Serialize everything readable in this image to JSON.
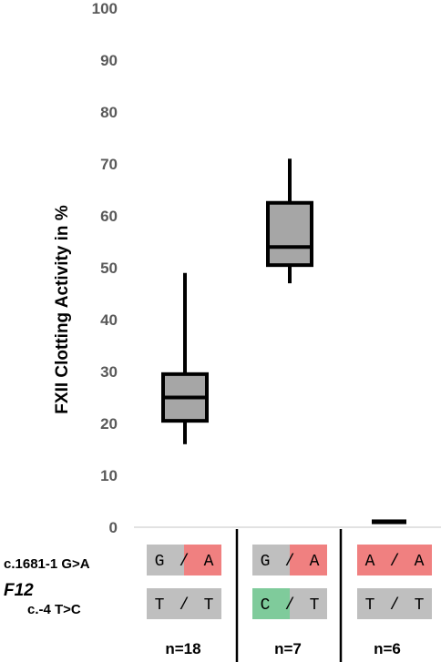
{
  "chart_data": {
    "type": "box",
    "ylabel": "FXII Clotting Activity in %",
    "ylim": [
      0,
      100
    ],
    "yticks": [
      0,
      10,
      20,
      30,
      40,
      50,
      60,
      70,
      80,
      90,
      100
    ],
    "grid": false,
    "box_fill": "#a6a6a6",
    "boxes": [
      {
        "group": 1,
        "min": 16,
        "q1": 20.5,
        "median": 25,
        "q3": 29.5,
        "max": 49,
        "n": "n=18"
      },
      {
        "group": 2,
        "min": 47,
        "q1": 50.5,
        "median": 54,
        "q3": 62.5,
        "max": 71,
        "n": "n=7"
      },
      {
        "group": 3,
        "min": 0.6,
        "q1": 0.6,
        "median": 1,
        "q3": 1.5,
        "max": 1.5,
        "n": "n=6"
      }
    ]
  },
  "genotype_table": {
    "gene": "F12",
    "rows": [
      {
        "label": "c.1681-1 G>A",
        "cells": [
          {
            "left": "G",
            "sep": "/",
            "right": "A",
            "left_color": "#bfbfbf",
            "right_color": "#f08080"
          },
          {
            "left": "G",
            "sep": "/",
            "right": "A",
            "left_color": "#bfbfbf",
            "right_color": "#f08080"
          },
          {
            "left": "A",
            "sep": "/",
            "right": "A",
            "left_color": "#f08080",
            "right_color": "#f08080"
          }
        ]
      },
      {
        "label": "c.-4 T>C",
        "cells": [
          {
            "left": "T",
            "sep": "/",
            "right": "T",
            "left_color": "#bfbfbf",
            "right_color": "#bfbfbf"
          },
          {
            "left": "C",
            "sep": "/",
            "right": "T",
            "left_color": "#7fcb9b",
            "right_color": "#bfbfbf"
          },
          {
            "left": "T",
            "sep": "/",
            "right": "T",
            "left_color": "#bfbfbf",
            "right_color": "#bfbfbf"
          }
        ]
      }
    ]
  }
}
